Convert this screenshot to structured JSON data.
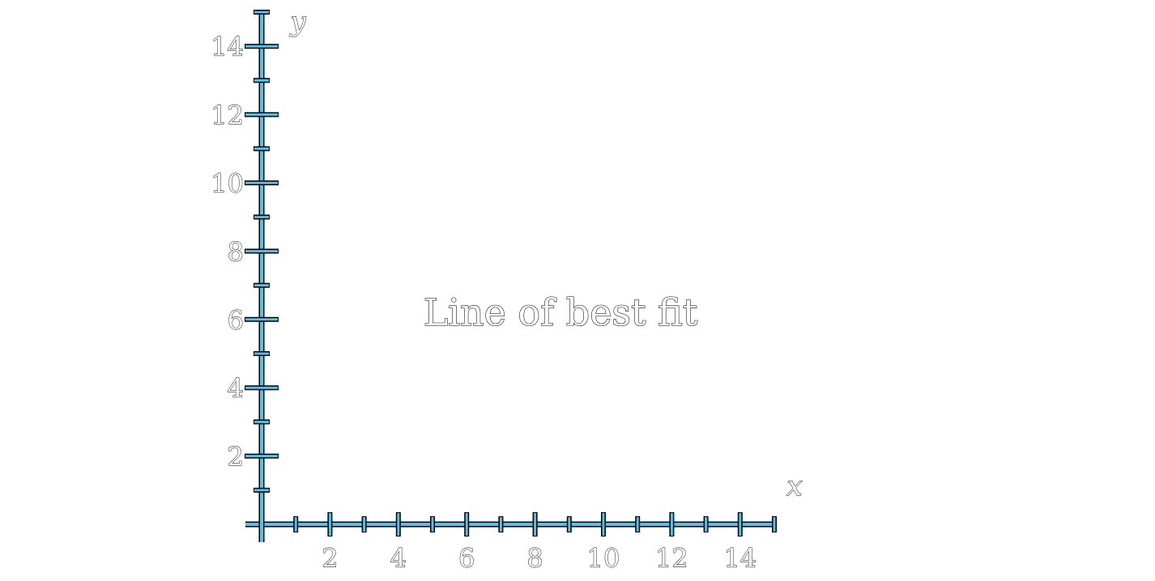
{
  "chart_data": {
    "type": "line",
    "title": "Line of best fit",
    "xlabel": "x",
    "ylabel": "y",
    "xlim": [
      0,
      15
    ],
    "ylim": [
      0,
      15
    ],
    "x_major_ticks": [
      2,
      4,
      6,
      8,
      10,
      12,
      14
    ],
    "x_minor_ticks": [
      1,
      3,
      5,
      7,
      9,
      11,
      13,
      15
    ],
    "y_major_ticks": [
      2,
      4,
      6,
      8,
      10,
      12,
      14
    ],
    "y_minor_ticks": [
      1,
      3,
      5,
      7,
      9,
      11,
      13,
      15
    ],
    "x_tick_labels": [
      "2",
      "4",
      "6",
      "8",
      "10",
      "12",
      "14"
    ],
    "y_tick_labels": [
      "2",
      "4",
      "6",
      "8",
      "10",
      "12",
      "14"
    ],
    "series": [],
    "grid": false,
    "axis_color": "#5bc0e8"
  }
}
